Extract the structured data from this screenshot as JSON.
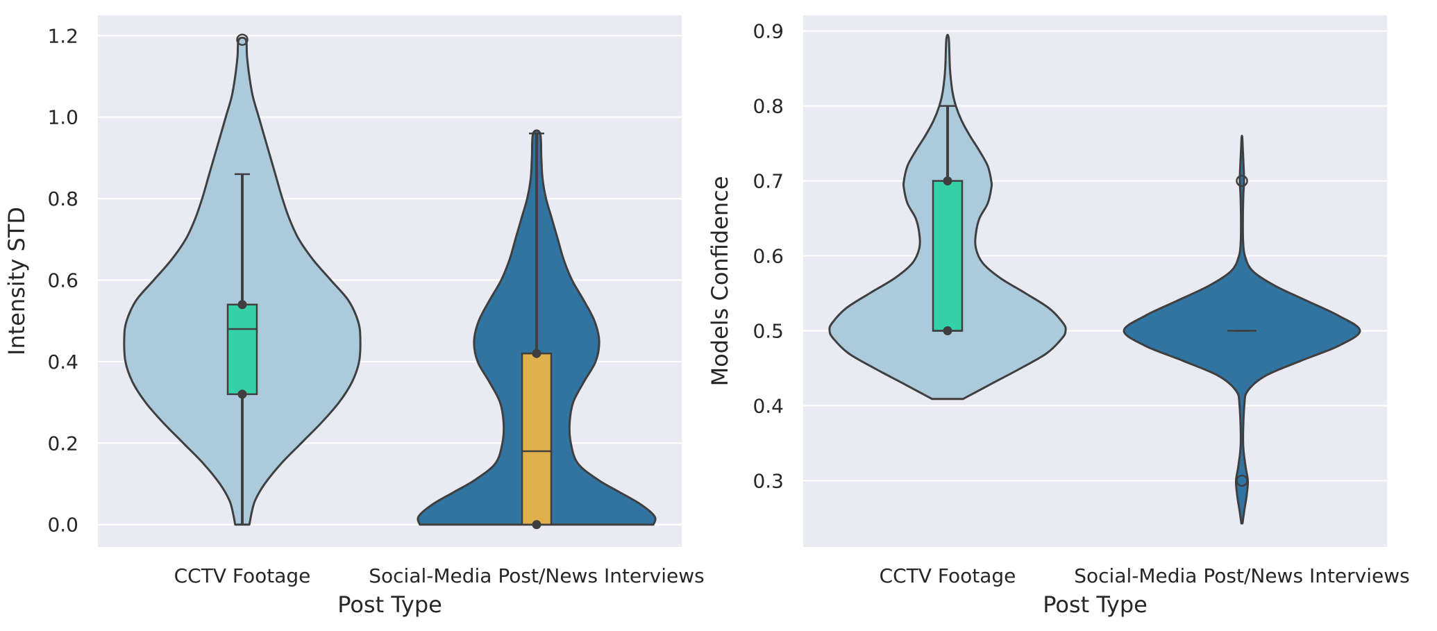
{
  "chart_data": [
    {
      "type": "violin",
      "xlabel": "Post Type",
      "ylabel": "Intensity STD",
      "ylim": [
        -0.055,
        1.25
      ],
      "yticks": [
        "0.0",
        "0.2",
        "0.4",
        "0.6",
        "0.8",
        "1.0",
        "1.2"
      ],
      "grid": true,
      "categories": [
        "CCTV Footage",
        "Social-Media Post/News Interviews"
      ],
      "violins": [
        {
          "category": "CCTV Footage",
          "fill": "#abcadc",
          "box_fill": "#35d0a8",
          "cut_min": 0.0,
          "cut_max": 1.19,
          "density_profile": [
            [
              0.0,
              0.06
            ],
            [
              0.03,
              0.08
            ],
            [
              0.06,
              0.11
            ],
            [
              0.1,
              0.19
            ],
            [
              0.15,
              0.33
            ],
            [
              0.2,
              0.5
            ],
            [
              0.25,
              0.67
            ],
            [
              0.3,
              0.82
            ],
            [
              0.35,
              0.93
            ],
            [
              0.4,
              0.99
            ],
            [
              0.46,
              1.0
            ],
            [
              0.5,
              0.98
            ],
            [
              0.55,
              0.9
            ],
            [
              0.6,
              0.75
            ],
            [
              0.65,
              0.6
            ],
            [
              0.7,
              0.48
            ],
            [
              0.75,
              0.4
            ],
            [
              0.8,
              0.34
            ],
            [
              0.85,
              0.29
            ],
            [
              0.9,
              0.24
            ],
            [
              0.95,
              0.19
            ],
            [
              1.0,
              0.14
            ],
            [
              1.05,
              0.09
            ],
            [
              1.1,
              0.06
            ],
            [
              1.15,
              0.04
            ],
            [
              1.19,
              0.03
            ]
          ],
          "box": {
            "q1": 0.32,
            "median": 0.48,
            "q3": 0.54,
            "whisker_low": 0.0,
            "whisker_high": 0.86
          },
          "points": [
            0.54,
            0.32
          ],
          "outliers": [
            1.19
          ]
        },
        {
          "category": "Social-Media Post/News Interviews",
          "fill": "#3274a1",
          "box_fill": "#e0b04c",
          "cut_min": 0.0,
          "cut_max": 0.96,
          "density_profile": [
            [
              0.0,
              0.99
            ],
            [
              0.02,
              1.0
            ],
            [
              0.05,
              0.88
            ],
            [
              0.08,
              0.7
            ],
            [
              0.11,
              0.52
            ],
            [
              0.15,
              0.35
            ],
            [
              0.2,
              0.29
            ],
            [
              0.25,
              0.28
            ],
            [
              0.3,
              0.31
            ],
            [
              0.35,
              0.4
            ],
            [
              0.4,
              0.5
            ],
            [
              0.45,
              0.53
            ],
            [
              0.5,
              0.49
            ],
            [
              0.55,
              0.4
            ],
            [
              0.6,
              0.3
            ],
            [
              0.65,
              0.23
            ],
            [
              0.7,
              0.18
            ],
            [
              0.75,
              0.13
            ],
            [
              0.8,
              0.08
            ],
            [
              0.85,
              0.05
            ],
            [
              0.9,
              0.04
            ],
            [
              0.96,
              0.03
            ]
          ],
          "box": {
            "q1": 0.0,
            "median": 0.18,
            "q3": 0.42,
            "whisker_low": 0.0,
            "whisker_high": 0.96
          },
          "points": [
            0.42,
            0.0
          ],
          "outliers": []
        }
      ]
    },
    {
      "type": "violin",
      "xlabel": "Post Type",
      "ylabel": "Models Confidence",
      "ylim": [
        0.2115,
        0.921
      ],
      "yticks": [
        "0.3",
        "0.4",
        "0.5",
        "0.6",
        "0.7",
        "0.8",
        "0.9"
      ],
      "grid": true,
      "categories": [
        "CCTV Footage",
        "Social-Media Post/News Interviews"
      ],
      "violins": [
        {
          "category": "CCTV Footage",
          "fill": "#abcadc",
          "box_fill": "#35d0a8",
          "cut_min": 0.409,
          "cut_max": 0.89,
          "density_profile": [
            [
              0.409,
              0.13
            ],
            [
              0.43,
              0.38
            ],
            [
              0.45,
              0.62
            ],
            [
              0.47,
              0.84
            ],
            [
              0.49,
              0.97
            ],
            [
              0.5,
              1.0
            ],
            [
              0.51,
              0.98
            ],
            [
              0.53,
              0.86
            ],
            [
              0.55,
              0.66
            ],
            [
              0.57,
              0.45
            ],
            [
              0.59,
              0.3
            ],
            [
              0.61,
              0.24
            ],
            [
              0.63,
              0.24
            ],
            [
              0.65,
              0.27
            ],
            [
              0.67,
              0.34
            ],
            [
              0.69,
              0.37
            ],
            [
              0.7,
              0.37
            ],
            [
              0.72,
              0.34
            ],
            [
              0.74,
              0.27
            ],
            [
              0.76,
              0.19
            ],
            [
              0.78,
              0.12
            ],
            [
              0.8,
              0.07
            ],
            [
              0.82,
              0.04
            ],
            [
              0.85,
              0.02
            ],
            [
              0.89,
              0.01
            ]
          ],
          "box": {
            "q1": 0.5,
            "median": 0.5,
            "q3": 0.7,
            "whisker_low": 0.5,
            "whisker_high": 0.8
          },
          "points": [
            0.7,
            0.5
          ],
          "outliers": []
        },
        {
          "category": "Social-Media Post/News Interviews",
          "fill": "#3274a1",
          "box_fill": "#e0b04c",
          "cut_min": 0.243,
          "cut_max": 0.758,
          "density_profile": [
            [
              0.243,
              0.005
            ],
            [
              0.26,
              0.02
            ],
            [
              0.28,
              0.04
            ],
            [
              0.3,
              0.05
            ],
            [
              0.32,
              0.03
            ],
            [
              0.35,
              0.01
            ],
            [
              0.4,
              0.02
            ],
            [
              0.42,
              0.05
            ],
            [
              0.44,
              0.2
            ],
            [
              0.46,
              0.5
            ],
            [
              0.48,
              0.82
            ],
            [
              0.5,
              1.0
            ],
            [
              0.52,
              0.82
            ],
            [
              0.54,
              0.55
            ],
            [
              0.56,
              0.28
            ],
            [
              0.58,
              0.09
            ],
            [
              0.6,
              0.025
            ],
            [
              0.62,
              0.01
            ],
            [
              0.65,
              0.008
            ],
            [
              0.68,
              0.012
            ],
            [
              0.7,
              0.018
            ],
            [
              0.72,
              0.014
            ],
            [
              0.74,
              0.008
            ],
            [
              0.758,
              0.003
            ]
          ],
          "box": {
            "q1": 0.5,
            "median": 0.5,
            "q3": 0.5,
            "whisker_low": 0.5,
            "whisker_high": 0.5
          },
          "points": [],
          "outliers": [
            0.7,
            0.3
          ]
        }
      ]
    }
  ]
}
